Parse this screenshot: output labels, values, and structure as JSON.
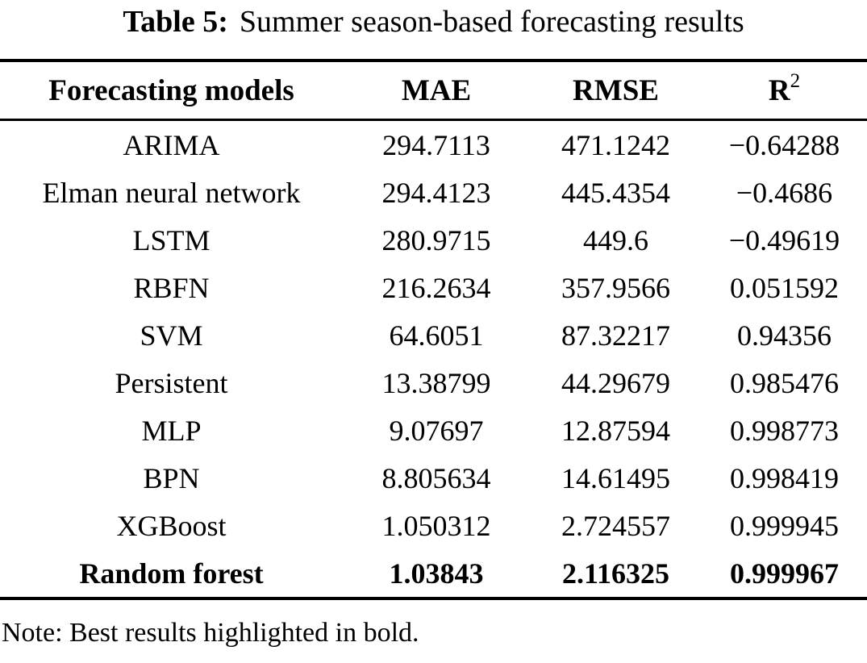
{
  "caption": {
    "label": "Table 5:",
    "text": "Summer season-based forecasting results"
  },
  "table": {
    "headers": {
      "models": "Forecasting models",
      "mae": "MAE",
      "rmse": "RMSE",
      "r2_base": "R",
      "r2_sup": "2"
    },
    "rows": [
      {
        "model": "ARIMA",
        "mae": "294.7113",
        "rmse": "471.1242",
        "r2": "−0.64288",
        "bold": false
      },
      {
        "model": "Elman neural network",
        "mae": "294.4123",
        "rmse": "445.4354",
        "r2": "−0.4686",
        "bold": false
      },
      {
        "model": "LSTM",
        "mae": "280.9715",
        "rmse": "449.6",
        "r2": "−0.49619",
        "bold": false
      },
      {
        "model": "RBFN",
        "mae": "216.2634",
        "rmse": "357.9566",
        "r2": "0.051592",
        "bold": false
      },
      {
        "model": "SVM",
        "mae": "64.6051",
        "rmse": "87.32217",
        "r2": "0.94356",
        "bold": false
      },
      {
        "model": "Persistent",
        "mae": "13.38799",
        "rmse": "44.29679",
        "r2": "0.985476",
        "bold": false
      },
      {
        "model": "MLP",
        "mae": "9.07697",
        "rmse": "12.87594",
        "r2": "0.998773",
        "bold": false
      },
      {
        "model": "BPN",
        "mae": "8.805634",
        "rmse": "14.61495",
        "r2": "0.998419",
        "bold": false
      },
      {
        "model": "XGBoost",
        "mae": "1.050312",
        "rmse": "2.724557",
        "r2": "0.999945",
        "bold": false
      },
      {
        "model": "Random forest",
        "mae": "1.03843",
        "rmse": "2.116325",
        "r2": "0.999967",
        "bold": true
      }
    ]
  },
  "note": "Note: Best results highlighted in bold."
}
